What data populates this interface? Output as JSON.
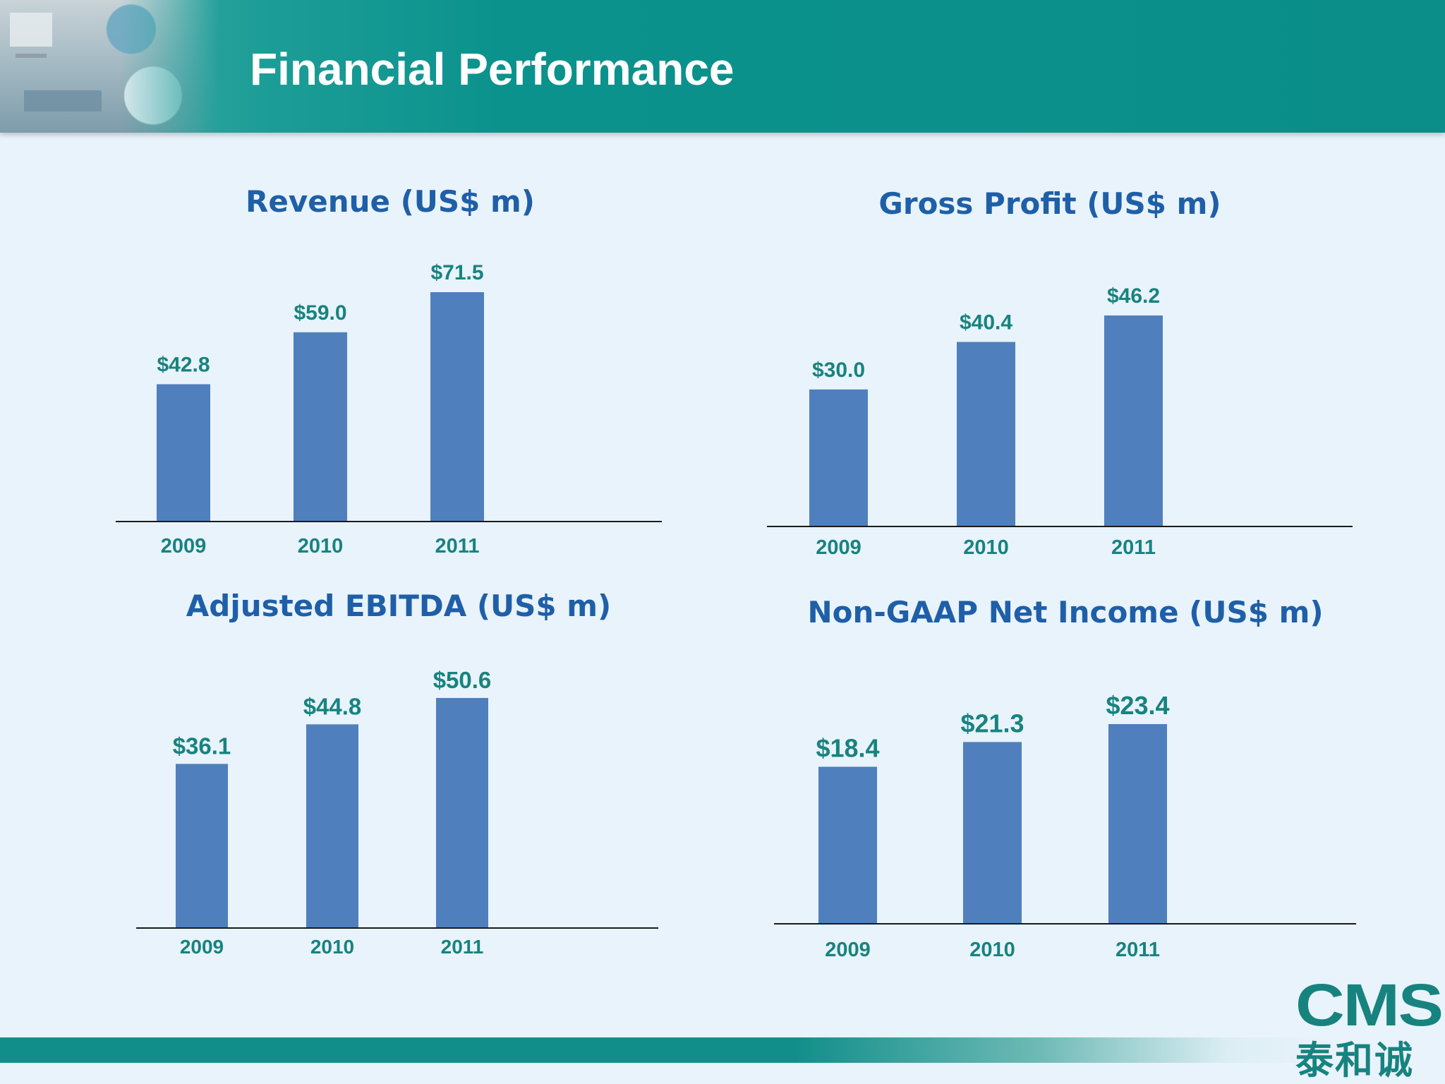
{
  "slide": {
    "title": "Financial Performance"
  },
  "logo": {
    "latin": "CMS",
    "chinese": "泰和诚"
  },
  "colors": {
    "header": "#0b8e8a",
    "bar": "#4f80bd",
    "label": "#17837f",
    "chart_title": "#1f5fa8",
    "baseline": "#1a1a1a"
  },
  "chart_data": [
    {
      "type": "bar",
      "title": "Revenue (US$ m)",
      "categories": [
        "2009",
        "2010",
        "2011"
      ],
      "values": [
        42.8,
        59.0,
        71.5
      ],
      "value_labels": [
        "$42.8",
        "$59.0",
        "$71.5"
      ],
      "xlabel": "",
      "ylabel": "",
      "ylim": [
        0,
        71.5
      ],
      "grid": false
    },
    {
      "type": "bar",
      "title": "Gross Profit (US$ m)",
      "categories": [
        "2009",
        "2010",
        "2011"
      ],
      "values": [
        30.0,
        40.4,
        46.2
      ],
      "value_labels": [
        "$30.0",
        "$40.4",
        "$46.2"
      ],
      "xlabel": "",
      "ylabel": "",
      "ylim": [
        0,
        46.2
      ],
      "grid": false
    },
    {
      "type": "bar",
      "title": "Adjusted EBITDA (US$ m)",
      "categories": [
        "2009",
        "2010",
        "2011"
      ],
      "values": [
        36.1,
        44.8,
        50.6
      ],
      "value_labels": [
        "$36.1",
        "$44.8",
        "$50.6"
      ],
      "xlabel": "",
      "ylabel": "",
      "ylim": [
        0,
        50.6
      ],
      "grid": false
    },
    {
      "type": "bar",
      "title": "Non-GAAP Net Income (US$ m)",
      "categories": [
        "2009",
        "2010",
        "2011"
      ],
      "values": [
        18.4,
        21.3,
        23.4
      ],
      "value_labels": [
        "$18.4",
        "$21.3",
        "$23.4"
      ],
      "xlabel": "",
      "ylabel": "",
      "ylim": [
        0,
        23.4
      ],
      "grid": false
    }
  ]
}
